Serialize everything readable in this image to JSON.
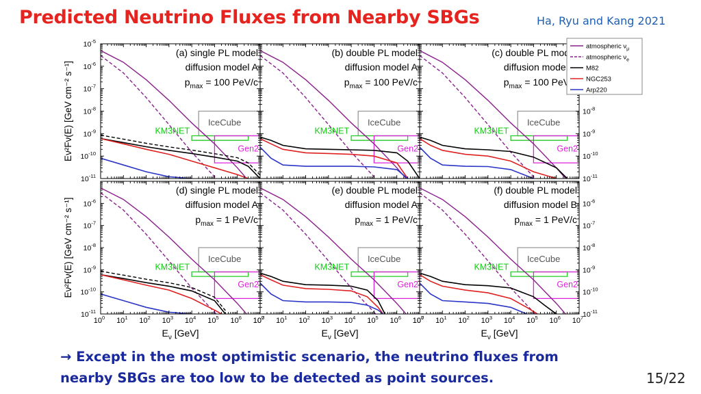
{
  "slide": {
    "title": "Predicted Neutrino Fluxes from Nearby SBGs",
    "credit": "Ha, Ryu and Kang 2021",
    "caption_arrow": "→",
    "caption_line1": "Except in the most optimistic scenario, the neutrino fluxes from",
    "caption_line2": "nearby SBGs are too low to be detected as point sources.",
    "page_number": "15/22"
  },
  "colors": {
    "title": "#e5231f",
    "credit": "#1f5fb3",
    "caption": "#1a2a9c",
    "atmospheric": "#8b1f8e",
    "M82": "#000000",
    "NGC253": "#e02020",
    "Arp220": "#2a35c8",
    "icecube": "#999999",
    "km3net": "#22cc22",
    "gen2": "#dd22dd"
  },
  "chart_data": {
    "type": "line",
    "layout": "2x3 panels sharing axes",
    "xscale": "log",
    "yscale": "log",
    "xlim": [
      1,
      10000000
    ],
    "ylim": [
      1e-11,
      1e-05
    ],
    "xlabel_main": "E",
    "xlabel_sub": "ν",
    "xlabel_unit": " [GeV]",
    "ylabel": "Eν²Fν(E) [GeV cm⁻² s⁻¹]",
    "x_ticks": [
      1,
      10,
      100,
      1000,
      10000,
      100000,
      1000000,
      10000000
    ],
    "x_tick_labels": [
      [
        "10",
        "0"
      ],
      [
        "10",
        "1"
      ],
      [
        "10",
        "2"
      ],
      [
        "10",
        "3"
      ],
      [
        "10",
        "4"
      ],
      [
        "10",
        "5"
      ],
      [
        "10",
        "6"
      ],
      [
        "10",
        "7"
      ]
    ],
    "y_ticks": [
      1e-05,
      1e-06,
      1e-07,
      1e-08,
      1e-09,
      1e-10,
      1e-11
    ],
    "y_tick_labels": [
      [
        "10",
        "-5"
      ],
      [
        "10",
        "-6"
      ],
      [
        "10",
        "-7"
      ],
      [
        "10",
        "-8"
      ],
      [
        "10",
        "-9"
      ],
      [
        "10",
        "-10"
      ],
      [
        "10",
        "-11"
      ]
    ],
    "legend": {
      "position": "top-right",
      "entries": [
        {
          "main": "atmospheric ν",
          "sub": "μ",
          "style": "solid",
          "color": "#8b1f8e"
        },
        {
          "main": "atmospheric ν",
          "sub": "e",
          "style": "dashed",
          "color": "#8b1f8e"
        },
        {
          "main": "M82",
          "sub": "",
          "style": "solid",
          "color": "#000000"
        },
        {
          "main": "NGC253",
          "sub": "",
          "style": "solid",
          "color": "#e02020"
        },
        {
          "main": "Arp220",
          "sub": "",
          "style": "solid",
          "color": "#2a35c8"
        }
      ]
    },
    "detector_labels": {
      "icecube": "IceCube",
      "km3net": "KM3NET",
      "gen2": "Gen2"
    },
    "sensitivity": {
      "icecube": [
        [
          20000,
          1e-08
        ],
        [
          20000,
          8e-10
        ],
        [
          10000000.0,
          8e-10
        ],
        [
          10000000.0,
          1e-08
        ]
      ],
      "km3net": [
        [
          10000,
          8e-10
        ],
        [
          10000,
          5e-10
        ],
        [
          3000000,
          5e-10
        ],
        [
          3000000,
          8e-10
        ]
      ],
      "gen2": [
        [
          100000,
          8e-10
        ],
        [
          100000,
          5e-11
        ],
        [
          10000000.0,
          5e-11
        ],
        [
          10000000.0,
          8e-10
        ]
      ]
    },
    "atmospheric_numu": {
      "x": [
        1,
        10,
        100,
        1000,
        10000,
        100000,
        1000000,
        10000000
      ],
      "y": [
        5e-06,
        1.5e-06,
        2.5e-07,
        3e-08,
        3e-09,
        3.5e-10,
        3e-11,
        2e-12
      ]
    },
    "atmospheric_nue": {
      "x": [
        1,
        10,
        100,
        1000,
        10000,
        100000,
        1000000
      ],
      "y": [
        3e-06,
        5e-07,
        4e-08,
        2.5e-09,
        1.5e-10,
        1.2e-11,
        1e-12
      ]
    },
    "panels": [
      {
        "label": "(a) single PL model",
        "line2": "diffusion model A",
        "pmax_value": " = 100 PeV/c",
        "series": [
          {
            "name": "M82",
            "x": [
              1,
              10,
              100,
              1000,
              10000,
              100000,
              1000000,
              3000000,
              10000000
            ],
            "y": [
              6e-10,
              4e-10,
              2.6e-10,
              1.8e-10,
              1.3e-10,
              9e-11,
              6e-11,
              3.5e-11,
              1e-11
            ]
          },
          {
            "name": "NGC253",
            "x": [
              1,
              10,
              100,
              1000,
              10000,
              100000,
              1000000,
              3000000
            ],
            "y": [
              6e-10,
              3.5e-10,
              2e-10,
              1.2e-10,
              6e-11,
              3e-11,
              1.5e-11,
              1e-11
            ]
          },
          {
            "name": "Arp220",
            "x": [
              1,
              10,
              100,
              1000,
              10000
            ],
            "y": [
              8e-11,
              4e-11,
              2e-11,
              1.2e-11,
              1e-11
            ]
          }
        ]
      },
      {
        "label": "(b) double PL model",
        "line2": "diffusion model A",
        "pmax_value": " = 100 PeV/c",
        "series": [
          {
            "name": "M82",
            "x": [
              1,
              3,
              10,
              100,
              1000,
              10000,
              100000,
              1000000,
              3000000,
              10000000
            ],
            "y": [
              7e-10,
              5e-10,
              3e-10,
              2.1e-10,
              2e-10,
              1.9e-10,
              1.8e-10,
              1.4e-10,
              6e-11,
              1e-11
            ]
          },
          {
            "name": "NGC253",
            "x": [
              1,
              3,
              10,
              100,
              1000,
              10000,
              100000,
              1000000,
              3000000
            ],
            "y": [
              6e-10,
              3.5e-10,
              2e-10,
              1.4e-10,
              1.3e-10,
              1.2e-10,
              1e-10,
              5e-11,
              1e-11
            ]
          },
          {
            "name": "Arp220",
            "x": [
              1,
              3,
              10,
              100,
              1000,
              10000,
              100000,
              1000000,
              3000000
            ],
            "y": [
              2.5e-10,
              8e-11,
              4e-11,
              3.5e-11,
              3.5e-11,
              3.5e-11,
              3.3e-11,
              2.5e-11,
              1e-11
            ]
          }
        ]
      },
      {
        "label": "(c) double PL model",
        "line2": "diffusion model B",
        "pmax_value": " = 100 PeV/c",
        "series": [
          {
            "name": "M82",
            "x": [
              1,
              3,
              10,
              100,
              1000,
              10000,
              100000,
              1000000,
              3000000
            ],
            "y": [
              7e-10,
              5e-10,
              3e-10,
              2.1e-10,
              1.9e-10,
              1.6e-10,
              9e-11,
              3e-11,
              1e-11
            ]
          },
          {
            "name": "NGC253",
            "x": [
              1,
              3,
              10,
              100,
              1000,
              10000,
              100000,
              1000000
            ],
            "y": [
              6e-10,
              3e-10,
              1.8e-10,
              1.2e-10,
              1e-10,
              6e-11,
              2e-11,
              1e-11
            ]
          },
          {
            "name": "Arp220",
            "x": [
              1,
              3,
              10,
              100,
              1000,
              10000,
              100000
            ],
            "y": [
              2.5e-10,
              8e-11,
              4e-11,
              3.5e-11,
              3.4e-11,
              2.5e-11,
              1e-11
            ]
          }
        ]
      },
      {
        "label": "(d) single PL model",
        "line2": "diffusion model A",
        "pmax_value": " = 1 PeV/c",
        "series": [
          {
            "name": "M82",
            "x": [
              1,
              10,
              100,
              1000,
              10000,
              100000,
              300000
            ],
            "y": [
              6e-10,
              4e-10,
              2.6e-10,
              1.8e-10,
              1.1e-10,
              4e-11,
              1e-11
            ]
          },
          {
            "name": "NGC253",
            "x": [
              1,
              10,
              100,
              1000,
              10000,
              100000,
              200000
            ],
            "y": [
              6e-10,
              3.5e-10,
              2e-10,
              1.2e-10,
              5e-11,
              1.5e-11,
              1e-11
            ]
          },
          {
            "name": "Arp220",
            "x": [
              1,
              10,
              100,
              1000,
              10000
            ],
            "y": [
              8e-11,
              4e-11,
              2e-11,
              1.2e-11,
              1e-11
            ]
          }
        ]
      },
      {
        "label": "(e) double PL model",
        "line2": "diffusion model A",
        "pmax_value": " = 1 PeV/c",
        "series": [
          {
            "name": "M82",
            "x": [
              1,
              3,
              10,
              100,
              1000,
              10000,
              50000,
              150000,
              300000
            ],
            "y": [
              7e-10,
              5e-10,
              3e-10,
              2.1e-10,
              2e-10,
              1.8e-10,
              1.2e-10,
              4e-11,
              1e-11
            ]
          },
          {
            "name": "NGC253",
            "x": [
              1,
              3,
              10,
              100,
              1000,
              10000,
              50000,
              150000,
              250000
            ],
            "y": [
              6e-10,
              3.5e-10,
              2e-10,
              1.4e-10,
              1.3e-10,
              1.1e-10,
              6e-11,
              2e-11,
              1e-11
            ]
          },
          {
            "name": "Arp220",
            "x": [
              1,
              3,
              10,
              100,
              1000,
              10000,
              50000,
              150000,
              250000
            ],
            "y": [
              2.5e-10,
              8e-11,
              4e-11,
              3.5e-11,
              3.5e-11,
              3.3e-11,
              2.5e-11,
              1.5e-11,
              1e-11
            ]
          }
        ]
      },
      {
        "label": "(f) double PL model",
        "line2": "diffusion model B",
        "pmax_value": " = 1 PeV/c",
        "series": [
          {
            "name": "M82",
            "x": [
              1,
              3,
              10,
              100,
              1000,
              10000,
              100000,
              300000,
              1000000
            ],
            "y": [
              7e-10,
              5e-10,
              3e-10,
              2.1e-10,
              1.9e-10,
              1.5e-10,
              6e-11,
              2.5e-11,
              1e-11
            ]
          },
          {
            "name": "NGC253",
            "x": [
              1,
              3,
              10,
              100,
              1000,
              10000,
              50000,
              150000
            ],
            "y": [
              6e-10,
              3e-10,
              1.8e-10,
              1.2e-10,
              9e-11,
              5e-11,
              2e-11,
              1e-11
            ]
          },
          {
            "name": "Arp220",
            "x": [
              1,
              3,
              10,
              100,
              1000,
              10000,
              50000
            ],
            "y": [
              2.5e-10,
              8e-11,
              4e-11,
              3.5e-11,
              3e-11,
              2e-11,
              1e-11
            ]
          }
        ]
      }
    ]
  }
}
